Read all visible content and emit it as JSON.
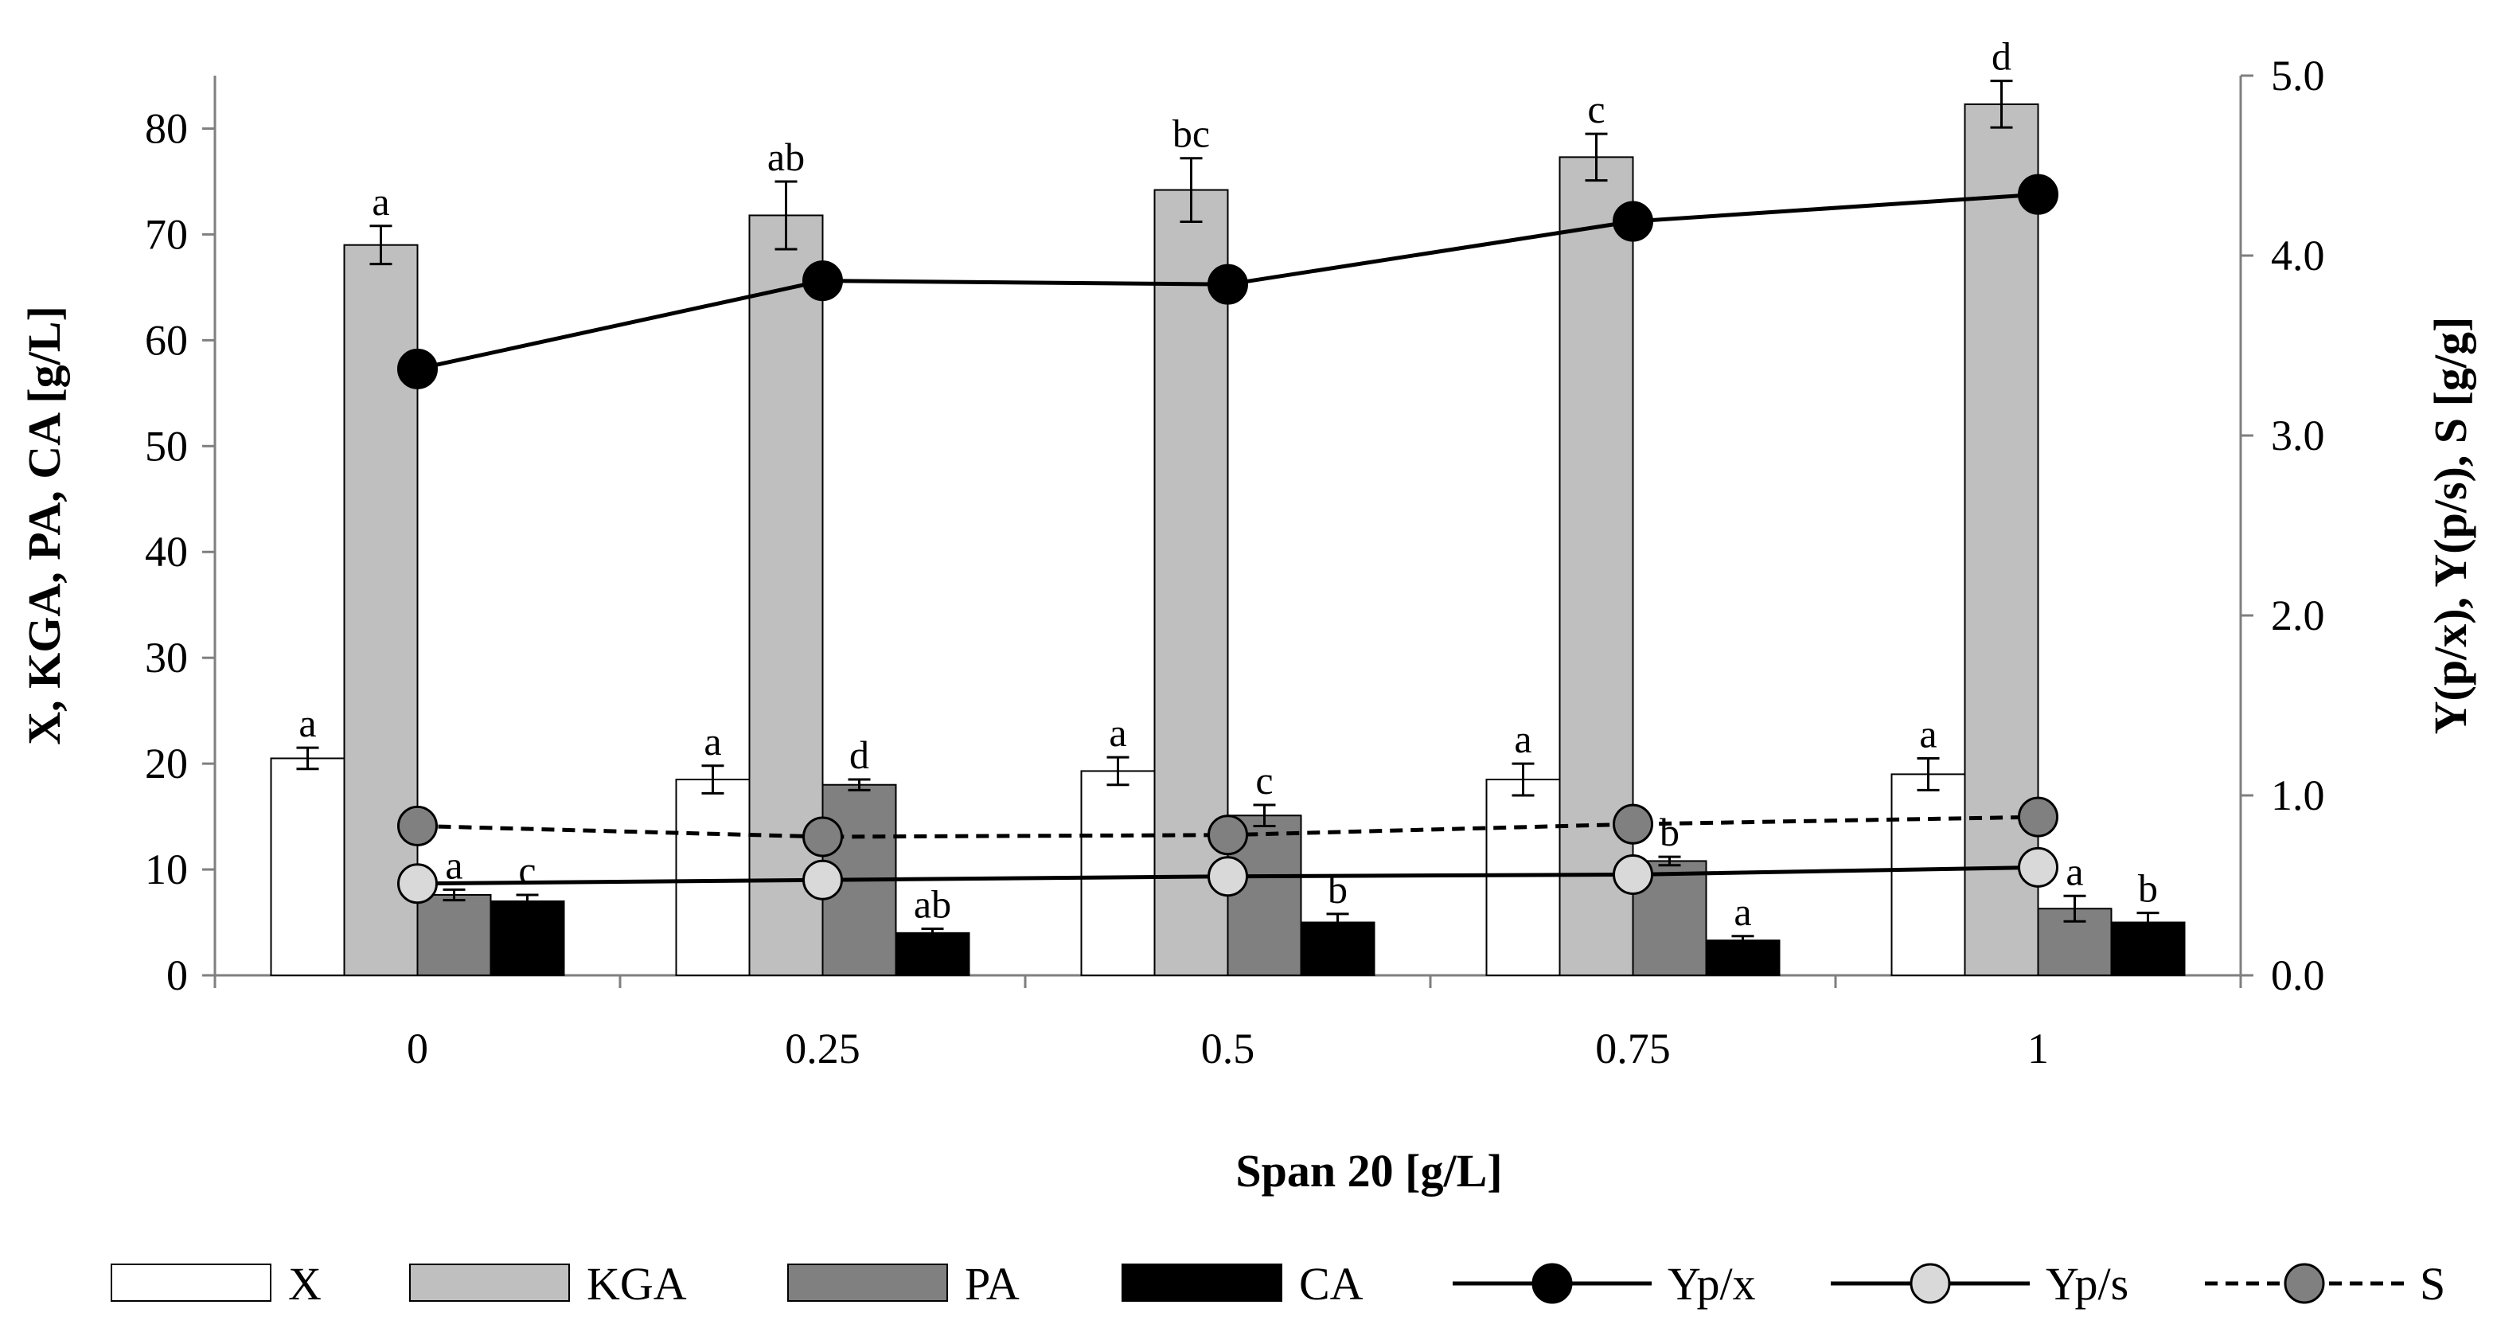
{
  "chart_data": {
    "type": "bar",
    "title": "",
    "xlabel": "Span 20 [g/L]",
    "ylabel": "X, KGA, PA, CA [g/L]",
    "y2label": "Y(p/x), Y(p/s), S  [g/g]",
    "categories": [
      "0",
      "0.25",
      "0.5",
      "0.75",
      "1"
    ],
    "ylim": [
      0,
      85
    ],
    "yticks": [
      "0",
      "10",
      "20",
      "30",
      "40",
      "50",
      "60",
      "70",
      "80"
    ],
    "y2lim": [
      0,
      5
    ],
    "y2ticks": [
      "0.0",
      "1.0",
      "2.0",
      "3.0",
      "4.0",
      "5.0"
    ],
    "grid": false,
    "legend_position": "bottom",
    "series": [
      {
        "name": "X",
        "kind": "bar",
        "axis": "left",
        "fill": "#ffffff",
        "values": [
          20.5,
          18.5,
          19.3,
          18.5,
          19.0
        ],
        "errors": [
          1.0,
          1.3,
          1.3,
          1.5,
          1.5
        ],
        "labels": [
          "a",
          "a",
          "a",
          "a",
          "a"
        ]
      },
      {
        "name": "KGA",
        "kind": "bar",
        "axis": "left",
        "fill": "#bfbfbf",
        "values": [
          69.0,
          71.8,
          74.2,
          77.3,
          82.3
        ],
        "errors": [
          1.8,
          3.2,
          3.0,
          2.2,
          2.2
        ],
        "labels": [
          "a",
          "ab",
          "bc",
          "c",
          "d"
        ]
      },
      {
        "name": "PA",
        "kind": "bar",
        "axis": "left",
        "fill": "#808080",
        "values": [
          7.6,
          18.0,
          15.1,
          10.8,
          6.3
        ],
        "errors": [
          0.5,
          0.5,
          1.0,
          0.4,
          1.2
        ],
        "labels": [
          "a",
          "d",
          "c",
          "b",
          "a"
        ]
      },
      {
        "name": "CA",
        "kind": "bar",
        "axis": "left",
        "fill": "#000000",
        "values": [
          7.0,
          4.0,
          5.0,
          3.3,
          5.0
        ],
        "errors": [
          0.6,
          0.4,
          0.8,
          0.4,
          0.9
        ],
        "labels": [
          "c",
          "ab",
          "b",
          "a",
          "b"
        ]
      },
      {
        "name": "Yp/x",
        "kind": "line",
        "axis": "right",
        "marker_fill": "#000000",
        "dashed": false,
        "values": [
          3.37,
          3.86,
          3.84,
          4.19,
          4.34
        ]
      },
      {
        "name": "Yp/s",
        "kind": "line",
        "axis": "right",
        "marker_fill": "#d9d9d9",
        "dashed": false,
        "values": [
          0.51,
          0.53,
          0.55,
          0.56,
          0.6
        ]
      },
      {
        "name": "S",
        "kind": "line",
        "axis": "right",
        "marker_fill": "#808080",
        "dashed": true,
        "values": [
          0.83,
          0.77,
          0.78,
          0.84,
          0.88
        ]
      }
    ]
  }
}
